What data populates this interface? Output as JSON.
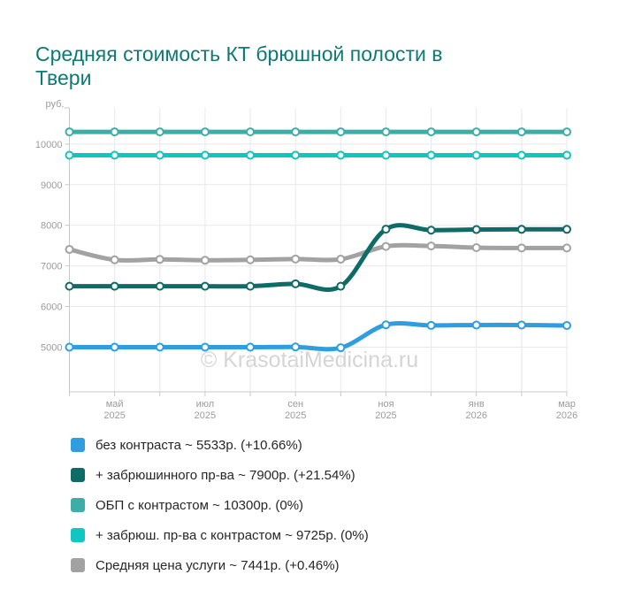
{
  "title": "Средняя стоимость КТ брюшной полости в Твери",
  "watermark": "© KrasotaiMedicina.ru",
  "chart_data": {
    "type": "line",
    "title": "Средняя стоимость КТ брюшной полости в Твери",
    "y_axis_unit": "руб.",
    "categories": [
      "",
      "май 2025",
      "",
      "июл 2025",
      "",
      "сен 2025",
      "",
      "ноя 2025",
      "",
      "янв 2026",
      "",
      "мар 2026"
    ],
    "yticks": [
      5000,
      6000,
      7000,
      8000,
      9000,
      10000
    ],
    "ylim": [
      3900,
      10890
    ],
    "grid": true,
    "legend_position": "bottom",
    "colors": {
      "grid": "#e8e8e8",
      "axis": "#c8c8c8",
      "tick_label": "#9b9b9b",
      "title": "#0d7a73",
      "watermark": "#d5d5d5"
    },
    "series": [
      {
        "name": "без контраста ~ 5533р. (+10.66%)",
        "color": "#2e9ee0",
        "values": [
          5000,
          5000,
          5000,
          5000,
          5000,
          5005,
          4985,
          5550,
          5535,
          5545,
          5545,
          5533
        ]
      },
      {
        "name": "+ забрюшинного пр-ва ~ 7900р. (+21.54%)",
        "color": "#0e6b66",
        "values": [
          6500,
          6500,
          6500,
          6500,
          6500,
          6560,
          6500,
          7905,
          7880,
          7895,
          7900,
          7900
        ]
      },
      {
        "name": "ОБП с контрастом ~ 10300р. (0%)",
        "color": "#3dada6",
        "values": [
          10300,
          10300,
          10300,
          10300,
          10300,
          10300,
          10300,
          10300,
          10300,
          10300,
          10300,
          10300
        ]
      },
      {
        "name": "+ забрюш. пр-ва с контрастом ~ 9725р. (0%)",
        "color": "#0fc6c0",
        "values": [
          9725,
          9725,
          9725,
          9725,
          9725,
          9725,
          9725,
          9725,
          9725,
          9725,
          9725,
          9725
        ]
      },
      {
        "name": "Средняя цена услуги ~ 7441р. (+0.46%)",
        "color": "#a2a2a2",
        "values": [
          7407,
          7150,
          7160,
          7140,
          7150,
          7170,
          7165,
          7480,
          7490,
          7450,
          7441,
          7441
        ]
      }
    ]
  }
}
